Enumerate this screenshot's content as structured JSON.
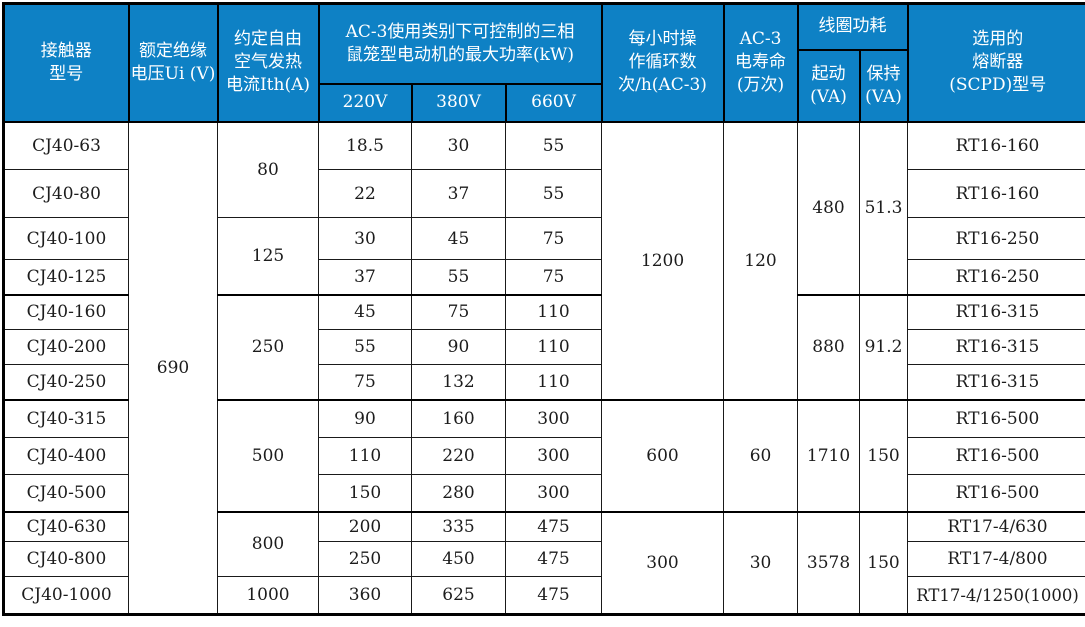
{
  "colors": {
    "header_bg": "#0e81c5",
    "header_text": "#ffffff",
    "body_text": "#1c1c1c",
    "grid_line": "#000000"
  },
  "columns": {
    "model": "接触器\n型号",
    "ui": "额定绝缘\n电压Ui (V)",
    "ith": "约定自由\n空气发热\n电流Ith(A)",
    "power_group": "AC-3使用类别下可控制的三相\n鼠笼型电动机的最大功率(kW)",
    "v220": "220V",
    "v380": "380V",
    "v660": "660V",
    "cycles": "每小时操\n作循环数\n次/h(AC-3)",
    "life": "AC-3\n电寿命\n(万次)",
    "coil_group": "线圈功耗",
    "start": "起动\n(VA)",
    "hold": "保持\n(VA)",
    "fuse": "选用的\n熔断器\n(SCPD)型号"
  },
  "merged": {
    "ui": "690",
    "ith": [
      "80",
      "125",
      "250",
      "500",
      "800",
      "1000"
    ],
    "cycles": [
      "1200",
      "600",
      "300"
    ],
    "life": [
      "120",
      "60",
      "30"
    ],
    "start": [
      "480",
      "880",
      "1710",
      "3578"
    ],
    "hold": [
      "51.3",
      "91.2",
      "150",
      "150"
    ]
  },
  "rows": [
    {
      "model": "CJ40-63",
      "p220": "18.5",
      "p380": "30",
      "p660": "55",
      "fuse": "RT16-160"
    },
    {
      "model": "CJ40-80",
      "p220": "22",
      "p380": "37",
      "p660": "55",
      "fuse": "RT16-160"
    },
    {
      "model": "CJ40-100",
      "p220": "30",
      "p380": "45",
      "p660": "75",
      "fuse": "RT16-250"
    },
    {
      "model": "CJ40-125",
      "p220": "37",
      "p380": "55",
      "p660": "75",
      "fuse": "RT16-250"
    },
    {
      "model": "CJ40-160",
      "p220": "45",
      "p380": "75",
      "p660": "110",
      "fuse": "RT16-315"
    },
    {
      "model": "CJ40-200",
      "p220": "55",
      "p380": "90",
      "p660": "110",
      "fuse": "RT16-315"
    },
    {
      "model": "CJ40-250",
      "p220": "75",
      "p380": "132",
      "p660": "110",
      "fuse": "RT16-315"
    },
    {
      "model": "CJ40-315",
      "p220": "90",
      "p380": "160",
      "p660": "300",
      "fuse": "RT16-500"
    },
    {
      "model": "CJ40-400",
      "p220": "110",
      "p380": "220",
      "p660": "300",
      "fuse": "RT16-500"
    },
    {
      "model": "CJ40-500",
      "p220": "150",
      "p380": "280",
      "p660": "300",
      "fuse": "RT16-500"
    },
    {
      "model": "CJ40-630",
      "p220": "200",
      "p380": "335",
      "p660": "475",
      "fuse": "RT17-4/630"
    },
    {
      "model": "CJ40-800",
      "p220": "250",
      "p380": "450",
      "p660": "475",
      "fuse": "RT17-4/800"
    },
    {
      "model": "CJ40-1000",
      "p220": "360",
      "p380": "625",
      "p660": "475",
      "fuse": "RT17-4/1250(1000)"
    }
  ]
}
